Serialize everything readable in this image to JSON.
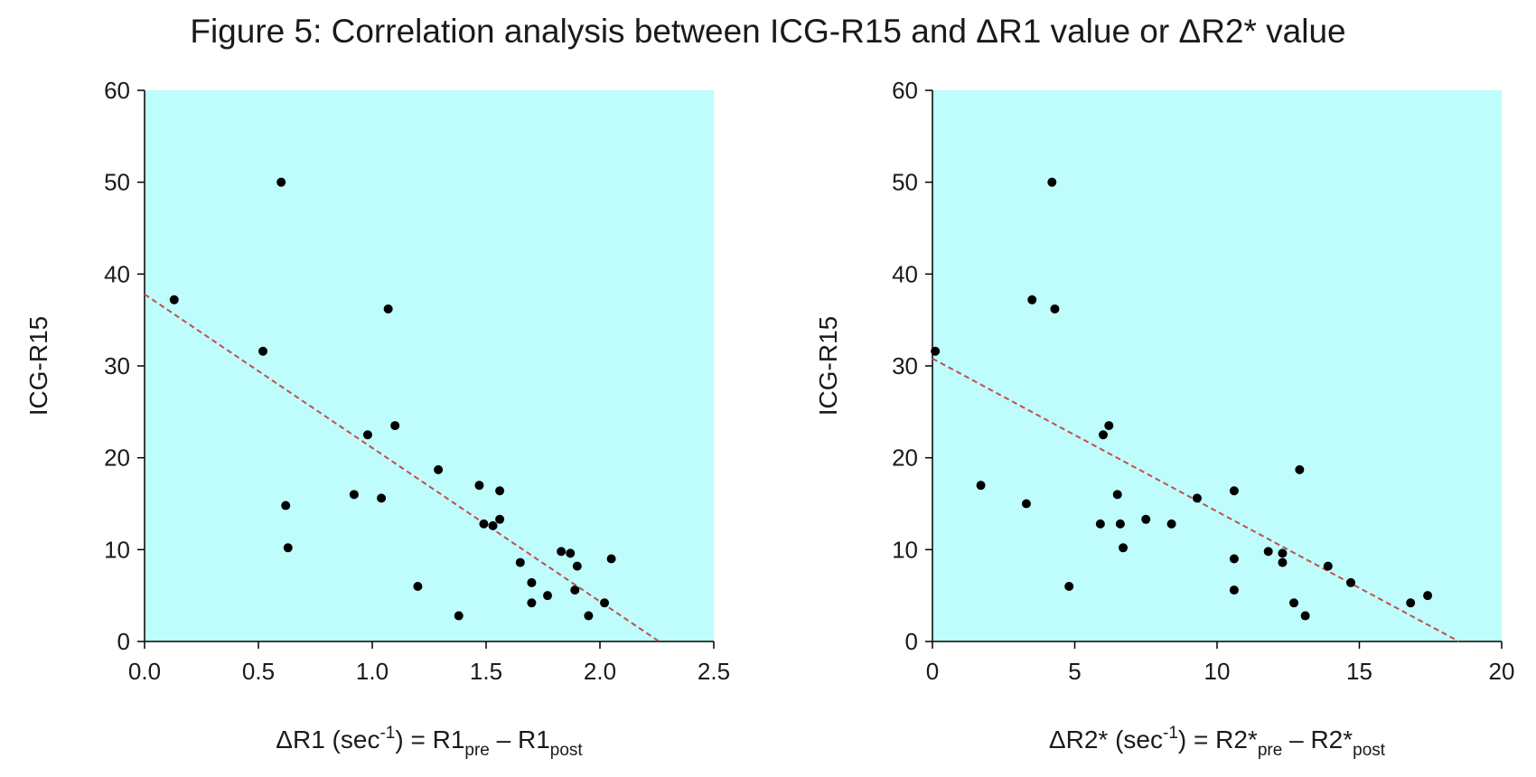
{
  "figure": {
    "title": "Figure 5: Correlation analysis between ICG-R15 and ΔR1 value or ΔR2* value"
  },
  "colors": {
    "plot_background": "#bffcfc",
    "point": "#000000",
    "trendline": "#c0504d",
    "axis": "#000000"
  },
  "chart_data": [
    {
      "type": "scatter",
      "title": "",
      "xlabel": "ΔR1 (sec-1) = R1pre – R1post",
      "xlabel_parts": {
        "main": "ΔR1 (sec",
        "sup": "-1",
        "mid": ") = R1",
        "sub1": "pre",
        "dash": " – R1",
        "sub2": "post"
      },
      "ylabel": "ICG-R15",
      "xlim": [
        0,
        2.5
      ],
      "ylim": [
        0,
        60
      ],
      "xticks": [
        0,
        0.5,
        1,
        1.5,
        2,
        2.5
      ],
      "xtick_labels": [
        "0.0",
        "0.5",
        "1.0",
        "1.5",
        "2.0",
        "2.5"
      ],
      "yticks": [
        0,
        10,
        20,
        30,
        40,
        50,
        60
      ],
      "ytick_labels": [
        "0",
        "10",
        "20",
        "30",
        "40",
        "50",
        "60"
      ],
      "grid": false,
      "trendline": {
        "style": "dashed",
        "x": [
          0,
          2.26
        ],
        "y": [
          37.8,
          0
        ]
      },
      "points": [
        {
          "x": 0.13,
          "y": 37.2
        },
        {
          "x": 0.52,
          "y": 31.6
        },
        {
          "x": 0.6,
          "y": 50.0
        },
        {
          "x": 0.62,
          "y": 14.8
        },
        {
          "x": 0.63,
          "y": 10.2
        },
        {
          "x": 0.92,
          "y": 16.0
        },
        {
          "x": 0.98,
          "y": 22.5
        },
        {
          "x": 1.04,
          "y": 15.6
        },
        {
          "x": 1.07,
          "y": 36.2
        },
        {
          "x": 1.1,
          "y": 23.5
        },
        {
          "x": 1.2,
          "y": 6.0
        },
        {
          "x": 1.29,
          "y": 18.7
        },
        {
          "x": 1.38,
          "y": 2.8
        },
        {
          "x": 1.47,
          "y": 17.0
        },
        {
          "x": 1.49,
          "y": 12.8
        },
        {
          "x": 1.53,
          "y": 12.6
        },
        {
          "x": 1.56,
          "y": 16.4
        },
        {
          "x": 1.56,
          "y": 13.3
        },
        {
          "x": 1.65,
          "y": 8.6
        },
        {
          "x": 1.7,
          "y": 6.4
        },
        {
          "x": 1.7,
          "y": 4.2
        },
        {
          "x": 1.77,
          "y": 5.0
        },
        {
          "x": 1.83,
          "y": 9.8
        },
        {
          "x": 1.87,
          "y": 9.6
        },
        {
          "x": 1.89,
          "y": 5.6
        },
        {
          "x": 1.9,
          "y": 8.2
        },
        {
          "x": 1.95,
          "y": 2.8
        },
        {
          "x": 2.02,
          "y": 4.2
        },
        {
          "x": 2.05,
          "y": 9.0
        }
      ]
    },
    {
      "type": "scatter",
      "title": "",
      "xlabel": "ΔR2* (sec-1) = R2*pre – R2*post",
      "xlabel_parts": {
        "main": "ΔR2* (sec",
        "sup": "-1",
        "mid": ") = R2*",
        "sub1": "pre",
        "dash": " – R2*",
        "sub2": "post"
      },
      "ylabel": "ICG-R15",
      "xlim": [
        0,
        20
      ],
      "ylim": [
        0,
        60
      ],
      "xticks": [
        0,
        5,
        10,
        15,
        20
      ],
      "xtick_labels": [
        "0",
        "5",
        "10",
        "15",
        "20"
      ],
      "yticks": [
        0,
        10,
        20,
        30,
        40,
        50,
        60
      ],
      "ytick_labels": [
        "0",
        "10",
        "20",
        "30",
        "40",
        "50",
        "60"
      ],
      "grid": false,
      "trendline": {
        "style": "dashed",
        "x": [
          0,
          18.5
        ],
        "y": [
          30.8,
          0
        ]
      },
      "points": [
        {
          "x": 0.1,
          "y": 31.6
        },
        {
          "x": 1.7,
          "y": 17.0
        },
        {
          "x": 3.3,
          "y": 15.0
        },
        {
          "x": 3.5,
          "y": 37.2
        },
        {
          "x": 4.2,
          "y": 50.0
        },
        {
          "x": 4.3,
          "y": 36.2
        },
        {
          "x": 4.8,
          "y": 6.0
        },
        {
          "x": 5.9,
          "y": 12.8
        },
        {
          "x": 6.0,
          "y": 22.5
        },
        {
          "x": 6.2,
          "y": 23.5
        },
        {
          "x": 6.5,
          "y": 16.0
        },
        {
          "x": 6.6,
          "y": 12.8
        },
        {
          "x": 6.7,
          "y": 10.2
        },
        {
          "x": 7.5,
          "y": 13.3
        },
        {
          "x": 8.4,
          "y": 12.8
        },
        {
          "x": 9.3,
          "y": 15.6
        },
        {
          "x": 10.6,
          "y": 16.4
        },
        {
          "x": 10.6,
          "y": 9.0
        },
        {
          "x": 10.6,
          "y": 5.6
        },
        {
          "x": 11.8,
          "y": 9.8
        },
        {
          "x": 12.3,
          "y": 9.6
        },
        {
          "x": 12.3,
          "y": 8.6
        },
        {
          "x": 12.7,
          "y": 4.2
        },
        {
          "x": 12.9,
          "y": 18.7
        },
        {
          "x": 13.1,
          "y": 2.8
        },
        {
          "x": 13.9,
          "y": 8.2
        },
        {
          "x": 14.7,
          "y": 6.4
        },
        {
          "x": 16.8,
          "y": 4.2
        },
        {
          "x": 17.4,
          "y": 5.0
        }
      ]
    }
  ]
}
